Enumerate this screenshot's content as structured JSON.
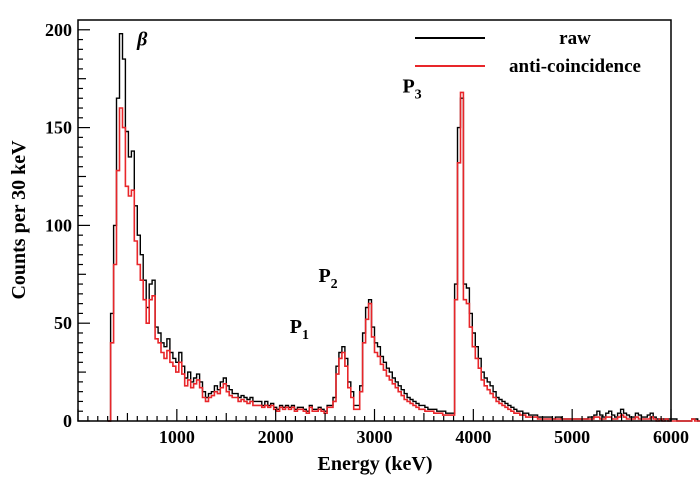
{
  "chart_data": {
    "type": "line",
    "xlabel": "Energy (keV)",
    "ylabel": "Counts per 30 keV",
    "xlim": [
      0,
      6000
    ],
    "ylim": [
      0,
      205
    ],
    "x_ticks": [
      "1000",
      "2000",
      "3000",
      "4000",
      "5000",
      "6000"
    ],
    "y_ticks": [
      "0",
      "50",
      "100",
      "150",
      "200"
    ],
    "legend_position": "top-right",
    "grid": false,
    "colors": {
      "raw": "#000000",
      "anti": "#e8262a"
    },
    "annotations": [
      {
        "id": "beta",
        "text": "β",
        "x": 650,
        "y": 192
      },
      {
        "id": "p1",
        "text": "P",
        "sub": "1",
        "x": 2240,
        "y": 45
      },
      {
        "id": "p2",
        "text": "P",
        "sub": "2",
        "x": 2530,
        "y": 71
      },
      {
        "id": "p3",
        "text": "P",
        "sub": "3",
        "x": 3380,
        "y": 168
      }
    ],
    "series": [
      {
        "name": "raw",
        "bin_width": 30,
        "x_start": 300,
        "values": [
          0,
          55,
          100,
          165,
          198,
          185,
          148,
          135,
          138,
          110,
          95,
          85,
          72,
          58,
          70,
          72,
          48,
          45,
          40,
          38,
          42,
          35,
          32,
          30,
          35,
          28,
          22,
          25,
          20,
          22,
          24,
          20,
          15,
          12,
          14,
          15,
          18,
          16,
          20,
          22,
          18,
          16,
          14,
          14,
          12,
          13,
          12,
          11,
          12,
          10,
          10,
          10,
          8,
          10,
          8,
          9,
          7,
          6,
          8,
          7,
          8,
          7,
          8,
          6,
          7,
          7,
          6,
          5,
          8,
          6,
          6,
          7,
          6,
          5,
          8,
          8,
          12,
          28,
          35,
          38,
          32,
          20,
          15,
          8,
          8,
          18,
          45,
          58,
          62,
          48,
          40,
          38,
          33,
          30,
          27,
          25,
          22,
          20,
          18,
          16,
          14,
          12,
          11,
          10,
          9,
          8,
          8,
          7,
          6,
          6,
          6,
          5,
          5,
          5,
          4,
          4,
          4,
          70,
          150,
          165,
          70,
          68,
          55,
          45,
          38,
          32,
          25,
          22,
          20,
          18,
          15,
          12,
          11,
          10,
          9,
          8,
          7,
          6,
          5,
          5,
          4,
          4,
          3,
          3,
          3,
          2,
          2,
          2,
          2,
          2,
          1,
          2,
          2,
          1,
          1,
          1,
          1,
          1,
          1,
          1,
          1,
          1,
          2,
          2,
          3,
          5,
          3,
          2,
          4,
          5,
          3,
          2,
          4,
          6,
          4,
          3,
          2,
          2,
          4,
          3,
          2,
          2,
          3,
          4,
          2,
          1,
          1,
          1,
          1,
          1,
          1,
          1,
          0,
          0,
          0,
          0,
          0,
          1,
          1,
          0,
          0,
          0,
          1,
          2,
          4,
          2,
          1,
          0,
          0,
          0,
          0,
          0,
          0,
          0
        ]
      },
      {
        "name": "anti-coincidence",
        "bin_width": 30,
        "x_start": 300,
        "values": [
          0,
          40,
          80,
          128,
          160,
          150,
          120,
          115,
          118,
          92,
          80,
          72,
          62,
          50,
          62,
          64,
          42,
          40,
          35,
          32,
          36,
          30,
          28,
          25,
          30,
          24,
          18,
          21,
          17,
          19,
          21,
          17,
          12,
          10,
          12,
          13,
          15,
          14,
          17,
          19,
          15,
          13,
          12,
          12,
          10,
          11,
          10,
          9,
          10,
          8,
          8,
          8,
          7,
          8,
          7,
          8,
          6,
          5,
          7,
          6,
          7,
          6,
          7,
          5,
          6,
          6,
          5,
          4,
          7,
          5,
          5,
          6,
          5,
          4,
          7,
          7,
          10,
          24,
          32,
          35,
          28,
          17,
          12,
          6,
          6,
          15,
          40,
          52,
          60,
          43,
          35,
          33,
          29,
          26,
          23,
          21,
          19,
          17,
          15,
          13,
          11,
          10,
          9,
          8,
          7,
          6,
          6,
          5,
          5,
          5,
          4,
          4,
          4,
          3,
          3,
          3,
          3,
          62,
          132,
          168,
          62,
          60,
          48,
          38,
          32,
          27,
          21,
          18,
          16,
          14,
          12,
          10,
          9,
          8,
          7,
          6,
          5,
          4,
          4,
          3,
          3,
          2,
          2,
          2,
          2,
          1,
          1,
          1,
          1,
          1,
          1,
          1,
          1,
          1,
          1,
          1,
          1,
          1,
          1,
          1,
          1,
          1,
          1,
          1,
          2,
          2,
          1,
          1,
          2,
          2,
          1,
          1,
          2,
          3,
          2,
          1,
          1,
          1,
          2,
          1,
          1,
          1,
          1,
          2,
          1,
          0,
          1,
          0,
          1,
          0,
          0,
          0,
          0,
          0,
          0,
          0,
          0,
          1,
          0,
          0,
          0,
          0,
          1,
          2,
          3,
          1,
          0,
          0,
          0,
          0,
          0,
          0,
          0,
          0
        ]
      }
    ]
  }
}
